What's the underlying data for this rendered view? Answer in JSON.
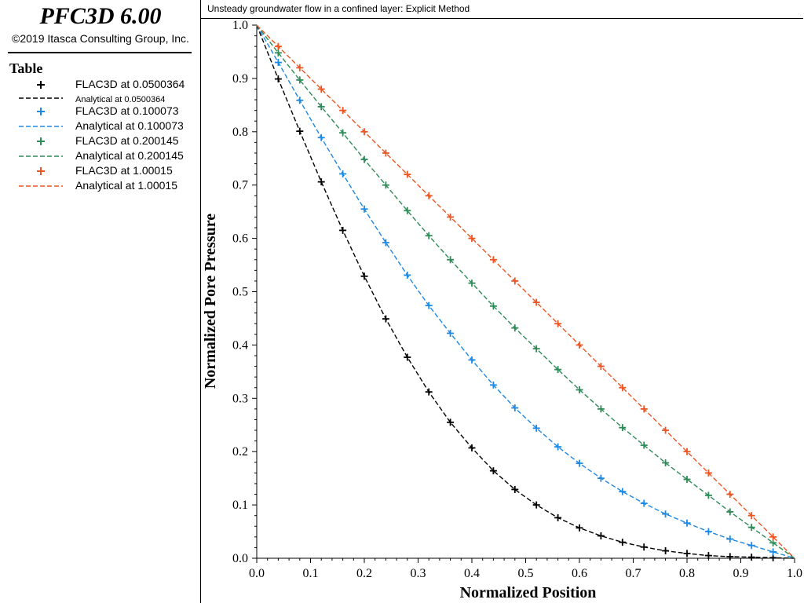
{
  "app": {
    "title": "PFC3D 6.00",
    "copyright": "©2019 Itasca Consulting Group, Inc."
  },
  "legend": {
    "heading": "Table",
    "entries": [
      {
        "label": "FLAC3D at 0.0500364",
        "kind": "plus",
        "color": "#000000"
      },
      {
        "label": "Analytical at 0.0500364",
        "kind": "dash",
        "color": "#000000",
        "small": true
      },
      {
        "label": "FLAC3D at 0.100073",
        "kind": "plus",
        "color": "#1e88e5"
      },
      {
        "label": "Analytical at 0.100073",
        "kind": "dash",
        "color": "#1e88e5"
      },
      {
        "label": "FLAC3D at 0.200145",
        "kind": "plus",
        "color": "#2e8b57"
      },
      {
        "label": "Analytical at 0.200145",
        "kind": "dash",
        "color": "#2e8b57"
      },
      {
        "label": "FLAC3D at 1.00015",
        "kind": "plus",
        "color": "#ee5522"
      },
      {
        "label": "Analytical at 1.00015",
        "kind": "dash",
        "color": "#ee5522"
      }
    ]
  },
  "chart_data": {
    "type": "line",
    "title": "Unsteady groundwater flow in a confined layer: Explicit Method",
    "xlabel": "Normalized Position",
    "ylabel": "Normalized Pore Pressure",
    "xlim": [
      0,
      1
    ],
    "ylim": [
      0,
      1
    ],
    "xticks": [
      "0.0",
      "0.1",
      "0.2",
      "0.3",
      "0.4",
      "0.5",
      "0.6",
      "0.7",
      "0.8",
      "0.9",
      "1.0"
    ],
    "yticks": [
      "0.0",
      "0.1",
      "0.2",
      "0.3",
      "0.4",
      "0.5",
      "0.6",
      "0.7",
      "0.8",
      "0.9",
      "1.0"
    ],
    "grid": false,
    "legend_position": "left-panel",
    "x": [
      0,
      0.04,
      0.08,
      0.12,
      0.16,
      0.2,
      0.24,
      0.28,
      0.32,
      0.36,
      0.4,
      0.44,
      0.48,
      0.52,
      0.56,
      0.6,
      0.64,
      0.68,
      0.72,
      0.76,
      0.8,
      0.84,
      0.88,
      0.92,
      0.96,
      1.0
    ],
    "series": [
      {
        "name": "FLAC3D at 0.0500364",
        "style": "markers",
        "color": "#000000",
        "values": [
          1.0,
          0.899,
          0.801,
          0.706,
          0.615,
          0.529,
          0.449,
          0.377,
          0.312,
          0.255,
          0.207,
          0.164,
          0.129,
          0.1,
          0.076,
          0.057,
          0.042,
          0.03,
          0.021,
          0.014,
          0.009,
          0.005,
          0.003,
          0.002,
          0.001,
          0.0
        ]
      },
      {
        "name": "Analytical at 0.0500364",
        "style": "dashed",
        "color": "#000000",
        "values": [
          1.0,
          0.899,
          0.801,
          0.706,
          0.615,
          0.529,
          0.449,
          0.377,
          0.312,
          0.255,
          0.207,
          0.164,
          0.129,
          0.1,
          0.076,
          0.057,
          0.042,
          0.03,
          0.021,
          0.014,
          0.009,
          0.005,
          0.003,
          0.002,
          0.001,
          0.0
        ]
      },
      {
        "name": "FLAC3D at 0.100073",
        "style": "markers",
        "color": "#1e88e5",
        "values": [
          1.0,
          0.93,
          0.859,
          0.789,
          0.721,
          0.655,
          0.592,
          0.531,
          0.474,
          0.422,
          0.372,
          0.325,
          0.282,
          0.244,
          0.209,
          0.178,
          0.15,
          0.125,
          0.103,
          0.083,
          0.066,
          0.05,
          0.036,
          0.024,
          0.012,
          0.0
        ]
      },
      {
        "name": "Analytical at 0.100073",
        "style": "dashed",
        "color": "#1e88e5",
        "values": [
          1.0,
          0.93,
          0.859,
          0.789,
          0.721,
          0.655,
          0.592,
          0.531,
          0.474,
          0.422,
          0.372,
          0.325,
          0.282,
          0.244,
          0.209,
          0.178,
          0.15,
          0.125,
          0.103,
          0.083,
          0.066,
          0.05,
          0.036,
          0.024,
          0.012,
          0.0
        ]
      },
      {
        "name": "FLAC3D at 0.200145",
        "style": "markers",
        "color": "#2e8b57",
        "values": [
          1.0,
          0.948,
          0.897,
          0.847,
          0.798,
          0.748,
          0.7,
          0.652,
          0.605,
          0.56,
          0.516,
          0.473,
          0.432,
          0.393,
          0.354,
          0.316,
          0.28,
          0.245,
          0.212,
          0.179,
          0.148,
          0.118,
          0.087,
          0.058,
          0.029,
          0.0
        ]
      },
      {
        "name": "Analytical at 0.200145",
        "style": "dashed",
        "color": "#2e8b57",
        "values": [
          1.0,
          0.948,
          0.897,
          0.847,
          0.798,
          0.748,
          0.7,
          0.652,
          0.605,
          0.56,
          0.516,
          0.473,
          0.432,
          0.393,
          0.354,
          0.316,
          0.28,
          0.245,
          0.212,
          0.179,
          0.148,
          0.118,
          0.087,
          0.058,
          0.029,
          0.0
        ]
      },
      {
        "name": "FLAC3D at 1.00015",
        "style": "markers",
        "color": "#ee5522",
        "values": [
          1.0,
          0.96,
          0.92,
          0.88,
          0.84,
          0.8,
          0.76,
          0.72,
          0.68,
          0.64,
          0.6,
          0.56,
          0.52,
          0.48,
          0.44,
          0.4,
          0.36,
          0.32,
          0.28,
          0.24,
          0.2,
          0.16,
          0.12,
          0.08,
          0.04,
          0.0
        ]
      },
      {
        "name": "Analytical at 1.00015",
        "style": "dashed",
        "color": "#ee5522",
        "values": [
          1.0,
          0.96,
          0.92,
          0.88,
          0.84,
          0.8,
          0.76,
          0.72,
          0.68,
          0.64,
          0.6,
          0.56,
          0.52,
          0.48,
          0.44,
          0.4,
          0.36,
          0.32,
          0.28,
          0.24,
          0.2,
          0.16,
          0.12,
          0.08,
          0.04,
          0.0
        ]
      }
    ]
  }
}
